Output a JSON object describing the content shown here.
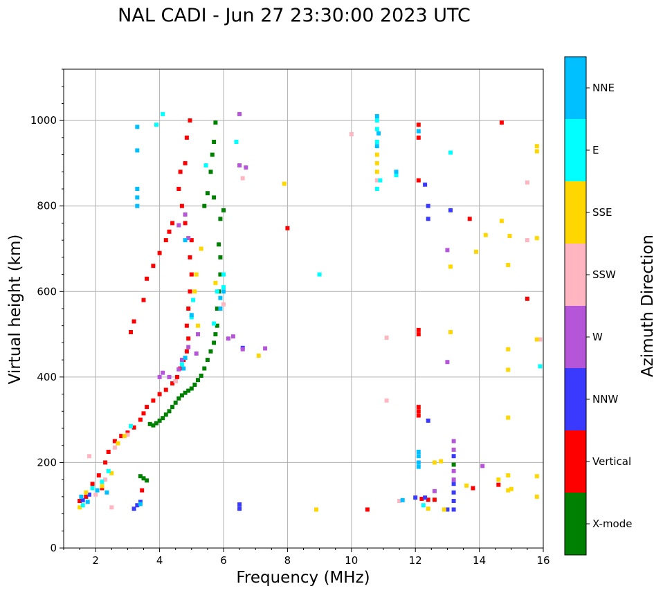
{
  "chart_data": {
    "type": "scatter",
    "title": "NAL CADI - Jun 27 23:30:00 2023 UTC",
    "xlabel": "Frequency (MHz)",
    "ylabel": "Virtual height (km)",
    "xlim": [
      1,
      16
    ],
    "ylim": [
      0,
      1120
    ],
    "xticks": [
      2,
      4,
      6,
      8,
      10,
      12,
      14,
      16
    ],
    "yticks": [
      0,
      200,
      400,
      600,
      800,
      1000
    ],
    "grid": true,
    "colorbar": {
      "label": "Azimuth Direction",
      "categories": [
        {
          "name": "X-mode",
          "color": "#008000"
        },
        {
          "name": "Vertical",
          "color": "#ff0000"
        },
        {
          "name": "NNW",
          "color": "#3a3aff"
        },
        {
          "name": "W",
          "color": "#b556d8"
        },
        {
          "name": "SSW",
          "color": "#ffb6c1"
        },
        {
          "name": "SSE",
          "color": "#ffd700"
        },
        {
          "name": "E",
          "color": "#00ffff"
        },
        {
          "name": "NNE",
          "color": "#00bfff"
        }
      ]
    },
    "series": [
      {
        "name": "X-mode",
        "points": [
          [
            3.4,
            168
          ],
          [
            3.5,
            163
          ],
          [
            3.6,
            158
          ],
          [
            3.7,
            290
          ],
          [
            3.8,
            287
          ],
          [
            3.9,
            292
          ],
          [
            4.0,
            298
          ],
          [
            4.1,
            304
          ],
          [
            4.2,
            312
          ],
          [
            4.3,
            320
          ],
          [
            4.4,
            330
          ],
          [
            4.5,
            340
          ],
          [
            4.6,
            350
          ],
          [
            4.7,
            357
          ],
          [
            4.8,
            363
          ],
          [
            4.9,
            368
          ],
          [
            5.0,
            373
          ],
          [
            5.1,
            382
          ],
          [
            5.2,
            393
          ],
          [
            5.3,
            403
          ],
          [
            5.4,
            420
          ],
          [
            5.5,
            440
          ],
          [
            5.6,
            460
          ],
          [
            5.7,
            480
          ],
          [
            5.75,
            500
          ],
          [
            5.8,
            520
          ],
          [
            5.8,
            560
          ],
          [
            5.85,
            600
          ],
          [
            5.9,
            640
          ],
          [
            5.9,
            680
          ],
          [
            5.85,
            710
          ],
          [
            5.9,
            770
          ],
          [
            6.0,
            790
          ],
          [
            5.7,
            820
          ],
          [
            5.4,
            800
          ],
          [
            5.5,
            830
          ],
          [
            5.6,
            880
          ],
          [
            5.65,
            920
          ],
          [
            5.7,
            950
          ],
          [
            5.75,
            995
          ],
          [
            13.2,
            195
          ]
        ]
      },
      {
        "name": "Vertical",
        "points": [
          [
            1.5,
            110
          ],
          [
            1.7,
            120
          ],
          [
            1.9,
            150
          ],
          [
            2.1,
            170
          ],
          [
            2.3,
            200
          ],
          [
            2.4,
            225
          ],
          [
            2.6,
            250
          ],
          [
            2.8,
            262
          ],
          [
            3.0,
            270
          ],
          [
            3.2,
            282
          ],
          [
            3.4,
            300
          ],
          [
            3.5,
            315
          ],
          [
            3.6,
            330
          ],
          [
            3.8,
            345
          ],
          [
            4.0,
            360
          ],
          [
            4.2,
            370
          ],
          [
            4.4,
            385
          ],
          [
            4.55,
            400
          ],
          [
            4.65,
            420
          ],
          [
            4.75,
            440
          ],
          [
            4.85,
            460
          ],
          [
            4.9,
            490
          ],
          [
            4.85,
            520
          ],
          [
            4.9,
            560
          ],
          [
            4.95,
            600
          ],
          [
            5.0,
            640
          ],
          [
            4.95,
            680
          ],
          [
            5.0,
            720
          ],
          [
            4.8,
            760
          ],
          [
            4.7,
            800
          ],
          [
            4.6,
            840
          ],
          [
            4.65,
            880
          ],
          [
            4.8,
            900
          ],
          [
            4.85,
            960
          ],
          [
            4.95,
            1000
          ],
          [
            3.5,
            580
          ],
          [
            3.6,
            630
          ],
          [
            3.8,
            660
          ],
          [
            4.0,
            690
          ],
          [
            4.2,
            720
          ],
          [
            4.3,
            740
          ],
          [
            4.4,
            760
          ],
          [
            3.1,
            505
          ],
          [
            3.2,
            530
          ],
          [
            12.1,
            330
          ],
          [
            12.1,
            320
          ],
          [
            12.1,
            310
          ],
          [
            12.1,
            510
          ],
          [
            12.1,
            500
          ],
          [
            12.1,
            860
          ],
          [
            12.1,
            960
          ],
          [
            12.1,
            990
          ],
          [
            12.2,
            115
          ],
          [
            12.4,
            113
          ],
          [
            12.6,
            113
          ],
          [
            13.8,
            140
          ],
          [
            14.7,
            995
          ],
          [
            14.6,
            148
          ],
          [
            15.5,
            583
          ],
          [
            13.7,
            770
          ],
          [
            8.0,
            748
          ],
          [
            10.5,
            90
          ],
          [
            3.45,
            135
          ],
          [
            2.2,
            140
          ]
        ]
      },
      {
        "name": "NNW",
        "points": [
          [
            1.6,
            112
          ],
          [
            1.8,
            125
          ],
          [
            3.3,
            100
          ],
          [
            3.2,
            92
          ],
          [
            3.4,
            108
          ],
          [
            6.5,
            102
          ],
          [
            6.5,
            92
          ],
          [
            6.6,
            468
          ],
          [
            12.0,
            118
          ],
          [
            12.3,
            118
          ],
          [
            12.3,
            850
          ],
          [
            12.4,
            800
          ],
          [
            12.4,
            770
          ],
          [
            12.4,
            298
          ],
          [
            13.1,
            790
          ],
          [
            13.0,
            90
          ],
          [
            13.2,
            90
          ],
          [
            13.2,
            110
          ],
          [
            13.2,
            130
          ],
          [
            13.2,
            150
          ],
          [
            13.2,
            215
          ]
        ]
      },
      {
        "name": "W",
        "points": [
          [
            4.0,
            400
          ],
          [
            4.1,
            410
          ],
          [
            4.3,
            400
          ],
          [
            4.5,
            390
          ],
          [
            4.6,
            418
          ],
          [
            4.7,
            440
          ],
          [
            4.9,
            470
          ],
          [
            5.2,
            500
          ],
          [
            6.15,
            490
          ],
          [
            6.3,
            495
          ],
          [
            6.6,
            465
          ],
          [
            6.5,
            1015
          ],
          [
            6.7,
            890
          ],
          [
            6.5,
            895
          ],
          [
            4.8,
            780
          ],
          [
            4.6,
            755
          ],
          [
            4.9,
            725
          ],
          [
            5.15,
            455
          ],
          [
            7.3,
            467
          ],
          [
            13.2,
            160
          ],
          [
            13.2,
            180
          ],
          [
            13.2,
            230
          ],
          [
            13.2,
            250
          ],
          [
            13.0,
            435
          ],
          [
            13.0,
            697
          ],
          [
            12.6,
            133
          ],
          [
            14.1,
            192
          ]
        ]
      },
      {
        "name": "SSW",
        "points": [
          [
            2.0,
            125
          ],
          [
            2.3,
            160
          ],
          [
            2.6,
            235
          ],
          [
            3.0,
            265
          ],
          [
            4.5,
            390
          ],
          [
            6.0,
            570
          ],
          [
            6.6,
            865
          ],
          [
            10.0,
            968
          ],
          [
            11.1,
            492
          ],
          [
            11.1,
            345
          ],
          [
            11.5,
            110
          ],
          [
            10.8,
            860
          ],
          [
            15.5,
            855
          ],
          [
            15.5,
            720
          ],
          [
            15.9,
            488
          ],
          [
            1.8,
            215
          ],
          [
            2.5,
            95
          ]
        ]
      },
      {
        "name": "SSE",
        "points": [
          [
            1.5,
            95
          ],
          [
            1.7,
            130
          ],
          [
            2.2,
            145
          ],
          [
            2.5,
            175
          ],
          [
            2.7,
            245
          ],
          [
            2.9,
            262
          ],
          [
            5.2,
            520
          ],
          [
            5.1,
            600
          ],
          [
            5.15,
            640
          ],
          [
            5.3,
            700
          ],
          [
            5.75,
            620
          ],
          [
            7.1,
            450
          ],
          [
            7.9,
            852
          ],
          [
            8.9,
            90
          ],
          [
            10.8,
            880
          ],
          [
            10.8,
            900
          ],
          [
            10.8,
            920
          ],
          [
            12.4,
            92
          ],
          [
            12.6,
            200
          ],
          [
            12.8,
            203
          ],
          [
            13.1,
            505
          ],
          [
            13.1,
            658
          ],
          [
            13.6,
            146
          ],
          [
            13.9,
            693
          ],
          [
            14.2,
            732
          ],
          [
            14.7,
            765
          ],
          [
            14.6,
            160
          ],
          [
            14.9,
            135
          ],
          [
            15.0,
            138
          ],
          [
            14.9,
            170
          ],
          [
            14.9,
            305
          ],
          [
            14.9,
            417
          ],
          [
            14.9,
            465
          ],
          [
            14.9,
            662
          ],
          [
            14.95,
            730
          ],
          [
            15.8,
            940
          ],
          [
            15.8,
            928
          ],
          [
            15.8,
            725
          ],
          [
            15.8,
            488
          ],
          [
            15.8,
            168
          ],
          [
            15.8,
            120
          ],
          [
            12.9,
            90
          ]
        ]
      },
      {
        "name": "E",
        "points": [
          [
            1.6,
            100
          ],
          [
            1.9,
            140
          ],
          [
            2.2,
            155
          ],
          [
            2.4,
            180
          ],
          [
            3.1,
            285
          ],
          [
            4.7,
            430
          ],
          [
            5.0,
            540
          ],
          [
            5.05,
            580
          ],
          [
            5.8,
            600
          ],
          [
            6.0,
            640
          ],
          [
            6.0,
            610
          ],
          [
            5.7,
            525
          ],
          [
            4.1,
            1015
          ],
          [
            3.9,
            990
          ],
          [
            5.45,
            895
          ],
          [
            6.4,
            950
          ],
          [
            9.0,
            640
          ],
          [
            10.8,
            950
          ],
          [
            10.8,
            980
          ],
          [
            10.8,
            1000
          ],
          [
            10.8,
            840
          ],
          [
            11.4,
            872
          ],
          [
            12.25,
            100
          ],
          [
            13.1,
            925
          ],
          [
            15.9,
            425
          ],
          [
            10.9,
            860
          ]
        ]
      },
      {
        "name": "NNE",
        "points": [
          [
            1.55,
            120
          ],
          [
            1.75,
            108
          ],
          [
            2.05,
            135
          ],
          [
            2.35,
            130
          ],
          [
            3.3,
            800
          ],
          [
            3.3,
            820
          ],
          [
            3.3,
            840
          ],
          [
            3.3,
            930
          ],
          [
            3.3,
            985
          ],
          [
            4.75,
            420
          ],
          [
            4.8,
            445
          ],
          [
            5.0,
            545
          ],
          [
            5.9,
            585
          ],
          [
            6.0,
            600
          ],
          [
            5.9,
            560
          ],
          [
            4.8,
            720
          ],
          [
            10.8,
            1010
          ],
          [
            10.85,
            970
          ],
          [
            10.8,
            940
          ],
          [
            12.1,
            190
          ],
          [
            12.1,
            200
          ],
          [
            12.1,
            215
          ],
          [
            12.1,
            225
          ],
          [
            12.1,
            975
          ],
          [
            11.6,
            112
          ],
          [
            11.4,
            880
          ],
          [
            3.4,
            103
          ]
        ]
      }
    ]
  }
}
